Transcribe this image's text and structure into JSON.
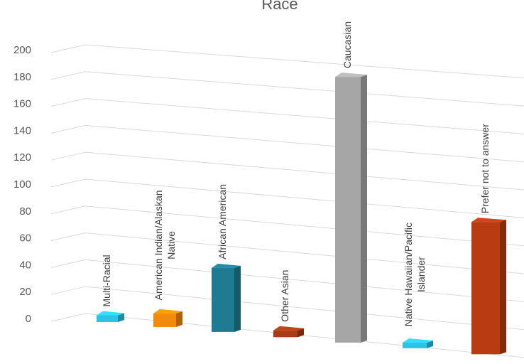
{
  "chart_data": {
    "type": "bar",
    "style": "3d-column",
    "title": "Race",
    "categories": [
      "Multi-Racial",
      "American Indian/Alaskan Native",
      "African American",
      "Other Asian",
      "Caucasian",
      "Native Hawaiian/Pacific Islander",
      "Prefer not to answer"
    ],
    "category_lines": [
      [
        "Multi-Racial"
      ],
      [
        "American Indian/Alaskan",
        "Native"
      ],
      [
        "African American"
      ],
      [
        "Other Asian"
      ],
      [
        "Caucasian"
      ],
      [
        "Native Hawaiian/Pacific",
        "Islander"
      ],
      [
        "Prefer not to answer"
      ]
    ],
    "values": [
      5,
      10,
      47,
      5,
      193,
      4,
      95
    ],
    "colors": [
      "#2bc3e6",
      "#f28a0c",
      "#1e7b92",
      "#a83a14",
      "#a6a6a6",
      "#2bc3e6",
      "#b83b12"
    ],
    "yticks": [
      "0",
      "20",
      "40",
      "60",
      "80",
      "100",
      "120",
      "140",
      "160",
      "180",
      "200"
    ],
    "ylim": [
      0,
      200
    ],
    "grid": true,
    "legend": "none"
  }
}
